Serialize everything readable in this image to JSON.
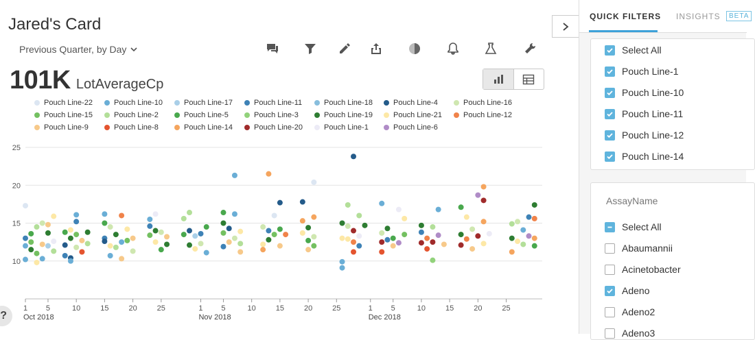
{
  "card": {
    "title": "Jared's Card",
    "period_label": "Previous Quarter, by Day",
    "metric_value": "101K",
    "metric_label": "LotAverageCp"
  },
  "toolbar": {
    "icons": [
      "comments-icon",
      "filter-icon",
      "pencil-icon",
      "share-icon",
      "pie-chart-icon",
      "bell-icon",
      "flask-icon",
      "wrench-icon"
    ]
  },
  "view_toggle": {
    "active": "chart"
  },
  "colors": {
    "accent": "#3ea2d9",
    "checkbox": "#5fb4dd"
  },
  "legend": [
    {
      "name": "Pouch Line-22",
      "color": "#dce6f2"
    },
    {
      "name": "Pouch Line-10",
      "color": "#6aaed6"
    },
    {
      "name": "Pouch Line-17",
      "color": "#a9cfe8"
    },
    {
      "name": "Pouch Line-11",
      "color": "#3e82b6"
    },
    {
      "name": "Pouch Line-18",
      "color": "#88bedd"
    },
    {
      "name": "Pouch Line-4",
      "color": "#245b8a"
    },
    {
      "name": "Pouch Line-16",
      "color": "#cfe7b0"
    },
    {
      "name": "Pouch Line-15",
      "color": "#74c061"
    },
    {
      "name": "Pouch Line-2",
      "color": "#b3df99"
    },
    {
      "name": "Pouch Line-5",
      "color": "#49a84d"
    },
    {
      "name": "Pouch Line-3",
      "color": "#92d27b"
    },
    {
      "name": "Pouch Line-19",
      "color": "#2e7d32"
    },
    {
      "name": "Pouch Line-21",
      "color": "#fde8a6"
    },
    {
      "name": "Pouch Line-12",
      "color": "#f0834a"
    },
    {
      "name": "Pouch Line-9",
      "color": "#f7c98a"
    },
    {
      "name": "Pouch Line-8",
      "color": "#e4542f"
    },
    {
      "name": "Pouch Line-14",
      "color": "#f5a55e"
    },
    {
      "name": "Pouch Line-20",
      "color": "#a02b2b"
    },
    {
      "name": "Pouch Line-1",
      "color": "#ecebf6"
    },
    {
      "name": "Pouch Line-6",
      "color": "#b08cc7"
    }
  ],
  "chart_data": {
    "type": "scatter",
    "ylim": [
      5,
      25
    ],
    "yticks": [
      10,
      15,
      20,
      25
    ],
    "x_range": [
      "2018-10-01",
      "2018-12-31"
    ],
    "xtick_labels": [
      "1",
      "5",
      "10",
      "15",
      "20",
      "25",
      "1",
      "5",
      "10",
      "15",
      "20",
      "25",
      "1",
      "5",
      "10",
      "15",
      "20",
      "25"
    ],
    "xtick_dates": [
      "2018-10-01",
      "2018-10-05",
      "2018-10-10",
      "2018-10-15",
      "2018-10-20",
      "2018-10-25",
      "2018-11-01",
      "2018-11-05",
      "2018-11-10",
      "2018-11-15",
      "2018-11-20",
      "2018-11-25",
      "2018-12-01",
      "2018-12-05",
      "2018-12-10",
      "2018-12-15",
      "2018-12-20",
      "2018-12-25"
    ],
    "month_labels": [
      {
        "label": "Oct 2018",
        "date": "2018-10-01"
      },
      {
        "label": "Nov 2018",
        "date": "2018-11-01"
      },
      {
        "label": "Dec 2018",
        "date": "2018-12-01"
      }
    ],
    "points": [
      [
        "2018-10-01",
        17.3,
        0
      ],
      [
        "2018-10-01",
        13.0,
        3
      ],
      [
        "2018-10-01",
        12.0,
        1
      ],
      [
        "2018-10-01",
        10.2,
        1
      ],
      [
        "2018-10-02",
        12.5,
        7
      ],
      [
        "2018-10-02",
        13.6,
        9
      ],
      [
        "2018-10-02",
        11.5,
        11
      ],
      [
        "2018-10-03",
        14.5,
        8
      ],
      [
        "2018-10-03",
        9.8,
        12
      ],
      [
        "2018-10-03",
        11.0,
        7
      ],
      [
        "2018-10-04",
        12.2,
        14
      ],
      [
        "2018-10-04",
        15.0,
        6
      ],
      [
        "2018-10-04",
        10.3,
        1
      ],
      [
        "2018-10-05",
        13.7,
        11
      ],
      [
        "2018-10-05",
        14.8,
        14
      ],
      [
        "2018-10-05",
        12.0,
        2
      ],
      [
        "2018-10-06",
        15.9,
        12
      ],
      [
        "2018-10-06",
        12.6,
        18
      ],
      [
        "2018-10-06",
        11.3,
        8
      ],
      [
        "2018-10-08",
        13.8,
        9
      ],
      [
        "2018-10-08",
        12.1,
        5
      ],
      [
        "2018-10-08",
        10.7,
        3
      ],
      [
        "2018-10-09",
        14.1,
        12
      ],
      [
        "2018-10-09",
        13.0,
        11
      ],
      [
        "2018-10-09",
        10.4,
        5
      ],
      [
        "2018-10-09",
        10.0,
        1
      ],
      [
        "2018-10-10",
        16.1,
        1
      ],
      [
        "2018-10-10",
        15.2,
        3
      ],
      [
        "2018-10-10",
        13.5,
        7
      ],
      [
        "2018-10-10",
        11.8,
        6
      ],
      [
        "2018-10-11",
        12.7,
        14
      ],
      [
        "2018-10-11",
        11.2,
        15
      ],
      [
        "2018-10-12",
        13.8,
        11
      ],
      [
        "2018-10-12",
        12.3,
        8
      ],
      [
        "2018-10-15",
        16.2,
        1
      ],
      [
        "2018-10-15",
        15.0,
        9
      ],
      [
        "2018-10-15",
        13.0,
        3
      ],
      [
        "2018-10-15",
        12.6,
        5
      ],
      [
        "2018-10-16",
        14.5,
        6
      ],
      [
        "2018-10-16",
        10.7,
        1
      ],
      [
        "2018-10-16",
        12.0,
        12
      ],
      [
        "2018-10-17",
        13.5,
        11
      ],
      [
        "2018-10-17",
        11.8,
        8
      ],
      [
        "2018-10-18",
        16.0,
        13
      ],
      [
        "2018-10-18",
        12.5,
        1
      ],
      [
        "2018-10-18",
        10.3,
        14
      ],
      [
        "2018-10-19",
        14.2,
        12
      ],
      [
        "2018-10-19",
        12.7,
        7
      ],
      [
        "2018-10-20",
        13.0,
        14
      ],
      [
        "2018-10-20",
        11.3,
        6
      ],
      [
        "2018-10-23",
        15.5,
        1
      ],
      [
        "2018-10-23",
        14.6,
        3
      ],
      [
        "2018-10-23",
        13.4,
        7
      ],
      [
        "2018-10-24",
        16.2,
        18
      ],
      [
        "2018-10-24",
        14.0,
        11
      ],
      [
        "2018-10-24",
        12.5,
        12
      ],
      [
        "2018-10-25",
        13.8,
        6
      ],
      [
        "2018-10-25",
        11.5,
        9
      ],
      [
        "2018-10-26",
        13.2,
        14
      ],
      [
        "2018-10-26",
        12.2,
        11
      ],
      [
        "2018-10-29",
        15.6,
        8
      ],
      [
        "2018-10-29",
        13.5,
        9
      ],
      [
        "2018-10-30",
        16.4,
        8
      ],
      [
        "2018-10-30",
        14.0,
        5
      ],
      [
        "2018-10-30",
        12.1,
        11
      ],
      [
        "2018-10-31",
        13.3,
        2
      ],
      [
        "2018-10-31",
        11.6,
        12
      ],
      [
        "2018-11-01",
        13.6,
        3
      ],
      [
        "2018-11-01",
        12.3,
        6
      ],
      [
        "2018-11-02",
        11.1,
        1
      ],
      [
        "2018-11-02",
        14.5,
        9
      ],
      [
        "2018-11-05",
        16.4,
        9
      ],
      [
        "2018-11-05",
        15.0,
        11
      ],
      [
        "2018-11-05",
        13.7,
        7
      ],
      [
        "2018-11-05",
        11.9,
        3
      ],
      [
        "2018-11-06",
        14.3,
        5
      ],
      [
        "2018-11-06",
        12.5,
        14
      ],
      [
        "2018-11-07",
        21.3,
        1
      ],
      [
        "2018-11-07",
        16.2,
        1
      ],
      [
        "2018-11-07",
        13.0,
        6
      ],
      [
        "2018-11-08",
        13.9,
        12
      ],
      [
        "2018-11-08",
        12.3,
        8
      ],
      [
        "2018-11-08",
        11.2,
        14
      ],
      [
        "2018-11-12",
        14.5,
        6
      ],
      [
        "2018-11-12",
        12.2,
        12
      ],
      [
        "2018-11-12",
        11.5,
        16
      ],
      [
        "2018-11-13",
        21.5,
        16
      ],
      [
        "2018-11-13",
        14.0,
        3
      ],
      [
        "2018-11-13",
        12.8,
        11
      ],
      [
        "2018-11-14",
        13.5,
        7
      ],
      [
        "2018-11-14",
        16.0,
        0
      ],
      [
        "2018-11-15",
        17.7,
        5
      ],
      [
        "2018-11-15",
        14.2,
        9
      ],
      [
        "2018-11-15",
        12.0,
        14
      ],
      [
        "2018-11-16",
        13.5,
        13
      ],
      [
        "2018-11-19",
        17.8,
        5
      ],
      [
        "2018-11-19",
        15.3,
        16
      ],
      [
        "2018-11-19",
        13.7,
        12
      ],
      [
        "2018-11-20",
        14.4,
        11
      ],
      [
        "2018-11-20",
        12.7,
        9
      ],
      [
        "2018-11-20",
        11.5,
        14
      ],
      [
        "2018-11-21",
        20.4,
        0
      ],
      [
        "2018-11-21",
        15.8,
        16
      ],
      [
        "2018-11-21",
        13.2,
        6
      ],
      [
        "2018-11-21",
        12.0,
        7
      ],
      [
        "2018-11-26",
        15.0,
        11
      ],
      [
        "2018-11-26",
        13.0,
        12
      ],
      [
        "2018-11-26",
        9.9,
        1
      ],
      [
        "2018-11-26",
        9.1,
        1
      ],
      [
        "2018-11-27",
        17.4,
        8
      ],
      [
        "2018-11-27",
        14.6,
        6
      ],
      [
        "2018-11-27",
        12.9,
        12
      ],
      [
        "2018-11-28",
        23.8,
        5
      ],
      [
        "2018-11-28",
        14.0,
        17
      ],
      [
        "2018-11-28",
        12.5,
        13
      ],
      [
        "2018-11-28",
        11.2,
        15
      ],
      [
        "2018-11-29",
        16.0,
        8
      ],
      [
        "2018-11-29",
        13.3,
        18
      ],
      [
        "2018-11-29",
        12.0,
        3
      ],
      [
        "2018-11-30",
        14.7,
        11
      ],
      [
        "2018-12-03",
        17.6,
        1
      ],
      [
        "2018-12-03",
        13.7,
        6
      ],
      [
        "2018-12-03",
        12.5,
        17
      ],
      [
        "2018-12-03",
        11.2,
        15
      ],
      [
        "2018-12-04",
        14.3,
        11
      ],
      [
        "2018-12-04",
        12.8,
        3
      ],
      [
        "2018-12-05",
        13.0,
        9
      ],
      [
        "2018-12-05",
        12.0,
        14
      ],
      [
        "2018-12-06",
        16.8,
        18
      ],
      [
        "2018-12-06",
        12.4,
        19
      ],
      [
        "2018-12-07",
        15.6,
        12
      ],
      [
        "2018-12-07",
        13.5,
        7
      ],
      [
        "2018-12-10",
        14.7,
        11
      ],
      [
        "2018-12-10",
        13.8,
        3
      ],
      [
        "2018-12-10",
        12.4,
        17
      ],
      [
        "2018-12-11",
        13.0,
        13
      ],
      [
        "2018-12-11",
        11.6,
        15
      ],
      [
        "2018-12-12",
        14.5,
        8
      ],
      [
        "2018-12-12",
        12.5,
        17
      ],
      [
        "2018-12-12",
        10.1,
        10
      ],
      [
        "2018-12-13",
        16.8,
        1
      ],
      [
        "2018-12-13",
        13.4,
        19
      ],
      [
        "2018-12-14",
        12.2,
        14
      ],
      [
        "2018-12-17",
        17.1,
        9
      ],
      [
        "2018-12-17",
        13.5,
        11
      ],
      [
        "2018-12-17",
        12.1,
        17
      ],
      [
        "2018-12-18",
        15.8,
        12
      ],
      [
        "2018-12-18",
        12.9,
        13
      ],
      [
        "2018-12-19",
        14.2,
        6
      ],
      [
        "2018-12-19",
        11.6,
        14
      ],
      [
        "2018-12-20",
        18.7,
        19
      ],
      [
        "2018-12-20",
        13.3,
        17
      ],
      [
        "2018-12-21",
        19.8,
        16
      ],
      [
        "2018-12-21",
        18.0,
        17
      ],
      [
        "2018-12-21",
        15.2,
        16
      ],
      [
        "2018-12-21",
        12.3,
        12
      ],
      [
        "2018-12-22",
        13.6,
        18
      ],
      [
        "2018-12-26",
        14.9,
        8
      ],
      [
        "2018-12-26",
        13.0,
        11
      ],
      [
        "2018-12-26",
        11.2,
        16
      ],
      [
        "2018-12-27",
        15.2,
        6
      ],
      [
        "2018-12-27",
        12.6,
        12
      ],
      [
        "2018-12-28",
        14.1,
        1
      ],
      [
        "2018-12-28",
        12.2,
        8
      ],
      [
        "2018-12-29",
        15.8,
        3
      ],
      [
        "2018-12-29",
        13.3,
        19
      ],
      [
        "2018-12-30",
        17.4,
        11
      ],
      [
        "2018-12-30",
        15.6,
        13
      ],
      [
        "2018-12-30",
        13.0,
        16
      ],
      [
        "2018-12-30",
        12.0,
        9
      ]
    ]
  },
  "panel": {
    "tab_quick_filters": "QUICK FILTERS",
    "tab_insights": "INSIGHTS",
    "beta": "BETA",
    "filter1_items": [
      {
        "label": "Select All",
        "state": "checked"
      },
      {
        "label": "Pouch Line-1",
        "state": "checked"
      },
      {
        "label": "Pouch Line-10",
        "state": "checked"
      },
      {
        "label": "Pouch Line-11",
        "state": "checked"
      },
      {
        "label": "Pouch Line-12",
        "state": "checked"
      },
      {
        "label": "Pouch Line-14",
        "state": "checked"
      }
    ],
    "filter2_heading": "AssayName",
    "filter2_items": [
      {
        "label": "Select All",
        "state": "partial"
      },
      {
        "label": "Abaumannii",
        "state": "unchecked"
      },
      {
        "label": "Acinetobacter",
        "state": "unchecked"
      },
      {
        "label": "Adeno",
        "state": "checked"
      },
      {
        "label": "Adeno2",
        "state": "unchecked"
      },
      {
        "label": "Adeno3",
        "state": "unchecked"
      }
    ]
  },
  "help_label": "?"
}
